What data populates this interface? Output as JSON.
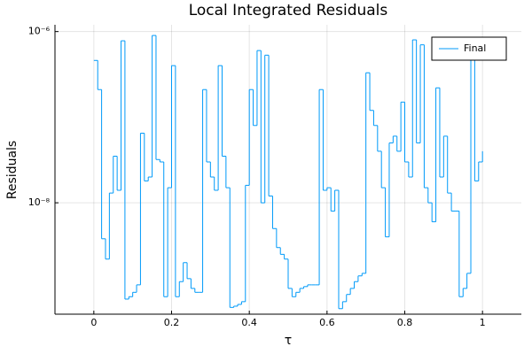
{
  "chart_data": {
    "type": "step",
    "title": "Local Integrated Residuals",
    "x_label": "τ",
    "y_label": "Residuals",
    "x": [
      0,
      0.01,
      0.02,
      0.03,
      0.04,
      0.05,
      0.06,
      0.07,
      0.08,
      0.09,
      0.1,
      0.11,
      0.12,
      0.13,
      0.14,
      0.15,
      0.16,
      0.17,
      0.18,
      0.19,
      0.2,
      0.21,
      0.22,
      0.23,
      0.24,
      0.25,
      0.26,
      0.27,
      0.28,
      0.29,
      0.3,
      0.31,
      0.32,
      0.33,
      0.34,
      0.35,
      0.36,
      0.37,
      0.38,
      0.39,
      0.4,
      0.41,
      0.42,
      0.43,
      0.44,
      0.45,
      0.46,
      0.47,
      0.48,
      0.49,
      0.5,
      0.51,
      0.52,
      0.53,
      0.54,
      0.55,
      0.56,
      0.57,
      0.58,
      0.59,
      0.6,
      0.61,
      0.62,
      0.63,
      0.64,
      0.65,
      0.66,
      0.67,
      0.68,
      0.69,
      0.7,
      0.71,
      0.72,
      0.73,
      0.74,
      0.75,
      0.76,
      0.77,
      0.78,
      0.79,
      0.8,
      0.81,
      0.82,
      0.83,
      0.84,
      0.85,
      0.86,
      0.87,
      0.88,
      0.89,
      0.9,
      0.91,
      0.92,
      0.93,
      0.94,
      0.95,
      0.96,
      0.97,
      0.98,
      0.99,
      1
    ],
    "series": [
      {
        "name": "Final",
        "color": "#009af9",
        "values": [
          4.6e-07,
          2.1e-07,
          3.8e-09,
          2.2e-09,
          1.3e-08,
          3.5e-08,
          1.4e-08,
          7.8e-07,
          7.5e-10,
          8e-10,
          9e-10,
          1.1e-09,
          6.5e-08,
          1.8e-08,
          2e-08,
          9e-07,
          3.2e-08,
          3e-08,
          8e-10,
          1.5e-08,
          4e-07,
          8e-10,
          1.2e-09,
          2e-09,
          1.3e-09,
          1e-09,
          9e-10,
          9e-10,
          2.1e-07,
          3e-08,
          2e-08,
          1.4e-08,
          4e-07,
          3.5e-08,
          1.5e-08,
          6e-10,
          6.2e-10,
          6.5e-10,
          7e-10,
          1.6e-08,
          2.1e-07,
          8e-08,
          6e-07,
          1e-08,
          5.3e-07,
          1.2e-08,
          5e-09,
          3e-09,
          2.5e-09,
          2.2e-09,
          1e-09,
          8e-10,
          9e-10,
          1e-09,
          1.05e-09,
          1.1e-09,
          1.1e-09,
          1.1e-09,
          2.1e-07,
          1.4e-08,
          1.5e-08,
          8e-09,
          1.4e-08,
          5.8e-10,
          7e-10,
          8.5e-10,
          1e-09,
          1.2e-09,
          1.4e-09,
          1.5e-09,
          3.3e-07,
          1.2e-07,
          8e-08,
          4e-08,
          1.5e-08,
          4e-09,
          5e-08,
          6e-08,
          4e-08,
          1.5e-07,
          3e-08,
          2e-08,
          8e-07,
          5e-08,
          7e-07,
          1.5e-08,
          1e-08,
          6e-09,
          2.2e-07,
          2e-08,
          6e-08,
          1.3e-08,
          8e-09,
          8e-09,
          8e-10,
          1e-09,
          1.5e-09,
          7e-07,
          1.8e-08,
          3e-08,
          4e-08
        ]
      }
    ],
    "xlim": [
      -0.1,
      1.1
    ],
    "xticks": [
      0,
      0.2,
      0.4,
      0.6,
      0.8,
      1
    ],
    "ylim": [
      5e-10,
      1.2e-06
    ],
    "y_log": true,
    "yticks": [
      {
        "value": 1e-08,
        "label": "10⁻⁸"
      },
      {
        "value": 1e-06,
        "label": "10⁻⁶"
      }
    ],
    "grid": true,
    "legend_position": "top-right"
  }
}
